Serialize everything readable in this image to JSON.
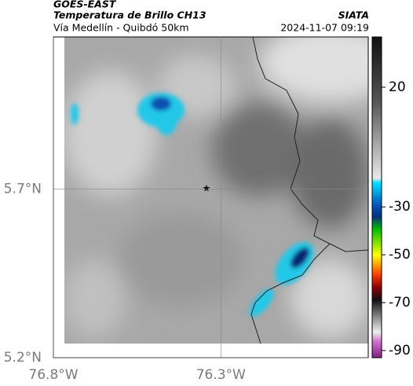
{
  "header": {
    "title": "GOES-EAST",
    "subtitle": "Temperatura de Brillo CH13",
    "source": "SIATA",
    "route": "Vía Medellín - Quibdó 50km",
    "timestamp": "2024-11-07 09:19"
  },
  "map": {
    "lonlim": [
      -76.8,
      -75.86
    ],
    "latlim": [
      5.2,
      6.15
    ],
    "xticks": [
      {
        "value": -76.8,
        "label": "76.8°W"
      },
      {
        "value": -76.3,
        "label": "76.3°W"
      }
    ],
    "yticks": [
      {
        "value": 5.2,
        "label": "5.2°N"
      },
      {
        "value": 5.7,
        "label": "5.7°N"
      }
    ]
  },
  "colorbar": {
    "range": [
      -93,
      41
    ],
    "ticks": [
      20,
      -30,
      -50,
      -70,
      -90
    ]
  }
}
